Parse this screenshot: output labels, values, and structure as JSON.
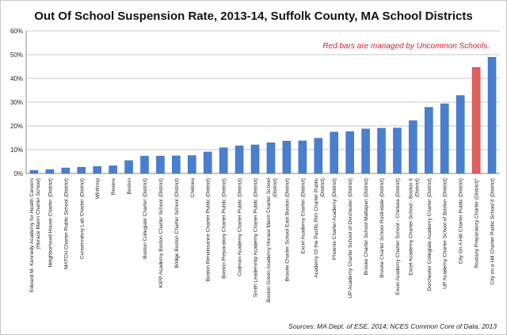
{
  "chart_data": {
    "type": "bar",
    "title": "Out Of School Suspension Rate, 2013-14, Suffolk County, MA School Districts",
    "xlabel": "",
    "ylabel": "",
    "ylim": [
      0,
      60
    ],
    "yticks": [
      0,
      10,
      20,
      30,
      40,
      50,
      60
    ],
    "ytick_labels": [
      "0%",
      "10%",
      "20%",
      "30%",
      "40%",
      "50%",
      "60%"
    ],
    "grid": true,
    "annotation": "Red bars are managed by Uncommon Schools.",
    "source": "Sources: MA Dept. of ESE, 2014; NCES Common Core of Data, 2013",
    "colors": {
      "default": "#4a7fd0",
      "highlight": "#e06060",
      "grid": "#c8c8c8"
    },
    "categories": [
      "Edward M. Kennedy Academy for Health Careers (Horace Mann Charter School)",
      "Neighborhood House Charter (District)",
      "MATCH Charter Public School (District)",
      "Conservatory Lab Charter (District)",
      "Winthrop",
      "Revere",
      "Boston",
      "Boston Collegiate Charter (District)",
      "KIPP Academy Boston Charter School (District)",
      "Bridge Boston Charter School (District)",
      "Chelsea",
      "Boston Renaissance Charter Public (District)",
      "Boston Preparatory Charter Public (District)",
      "Codman Academy Charter Public (District)",
      "Smith Leadership Academy Charter Public (District)",
      "Boston Green Academy Horace Mann Charter School (District)",
      "Brooke Charter School East Boston (District)",
      "Excel Academy Charter (District)",
      "Academy Of the Pacific Rim Charter Public (District)",
      "Phoenix Charter Academy (District)",
      "UP Academy Charter School of Dorchester (District)",
      "Brooke Charter School Mattapan (District)",
      "Brooke Charter School Roslindale (District)",
      "Excel Academy Charter School - Chelsea (District)",
      "Excel Academy Charter School - Boston II (District)",
      "Dorchester Collegiate Academy Charter (District)",
      "UP Academy Charter School of Boston (District)",
      "City On A Hill Charter Public (District)",
      "Roxbury Preparatory Charter (District)*",
      "City on a Hill Charter Public School II (District)"
    ],
    "values": [
      1.3,
      1.6,
      2.3,
      2.6,
      2.9,
      3.2,
      5.4,
      7.3,
      7.3,
      7.4,
      7.5,
      9.0,
      10.8,
      11.6,
      12.0,
      12.9,
      13.6,
      13.7,
      14.8,
      17.4,
      17.6,
      18.7,
      19.0,
      19.1,
      22.2,
      27.8,
      29.3,
      32.8,
      44.6,
      48.9
    ],
    "highlighted": [
      false,
      false,
      false,
      false,
      false,
      false,
      false,
      false,
      false,
      false,
      false,
      false,
      false,
      false,
      false,
      false,
      false,
      false,
      false,
      false,
      false,
      false,
      false,
      false,
      false,
      false,
      false,
      false,
      true,
      false
    ]
  }
}
